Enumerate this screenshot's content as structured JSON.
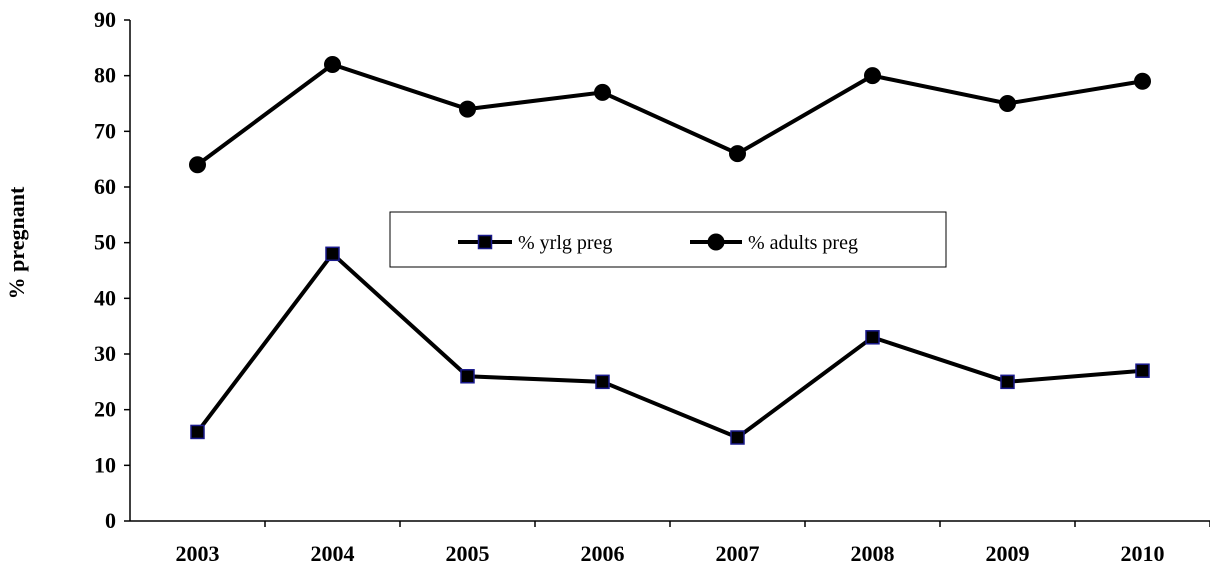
{
  "chart_data": {
    "type": "line",
    "title": "",
    "xlabel": "",
    "ylabel": "% pregnant",
    "categories": [
      "2003",
      "2004",
      "2005",
      "2006",
      "2007",
      "2008",
      "2009",
      "2010"
    ],
    "ylim": [
      0,
      90
    ],
    "yticks": [
      "0",
      "10",
      "20",
      "30",
      "40",
      "50",
      "60",
      "70",
      "80",
      "90"
    ],
    "grid": false,
    "legend_position": "center",
    "series": [
      {
        "name": "% yrlg preg",
        "marker": "square",
        "color": "#000000",
        "marker_fill": "#000000",
        "marker_edge": "#1a1a8c",
        "values": [
          16,
          48,
          26,
          25,
          15,
          33,
          25,
          27
        ]
      },
      {
        "name": "% adults preg",
        "marker": "circle",
        "color": "#000000",
        "marker_fill": "#000000",
        "marker_edge": "#000000",
        "values": [
          64,
          82,
          74,
          77,
          66,
          80,
          75,
          79
        ]
      }
    ]
  }
}
